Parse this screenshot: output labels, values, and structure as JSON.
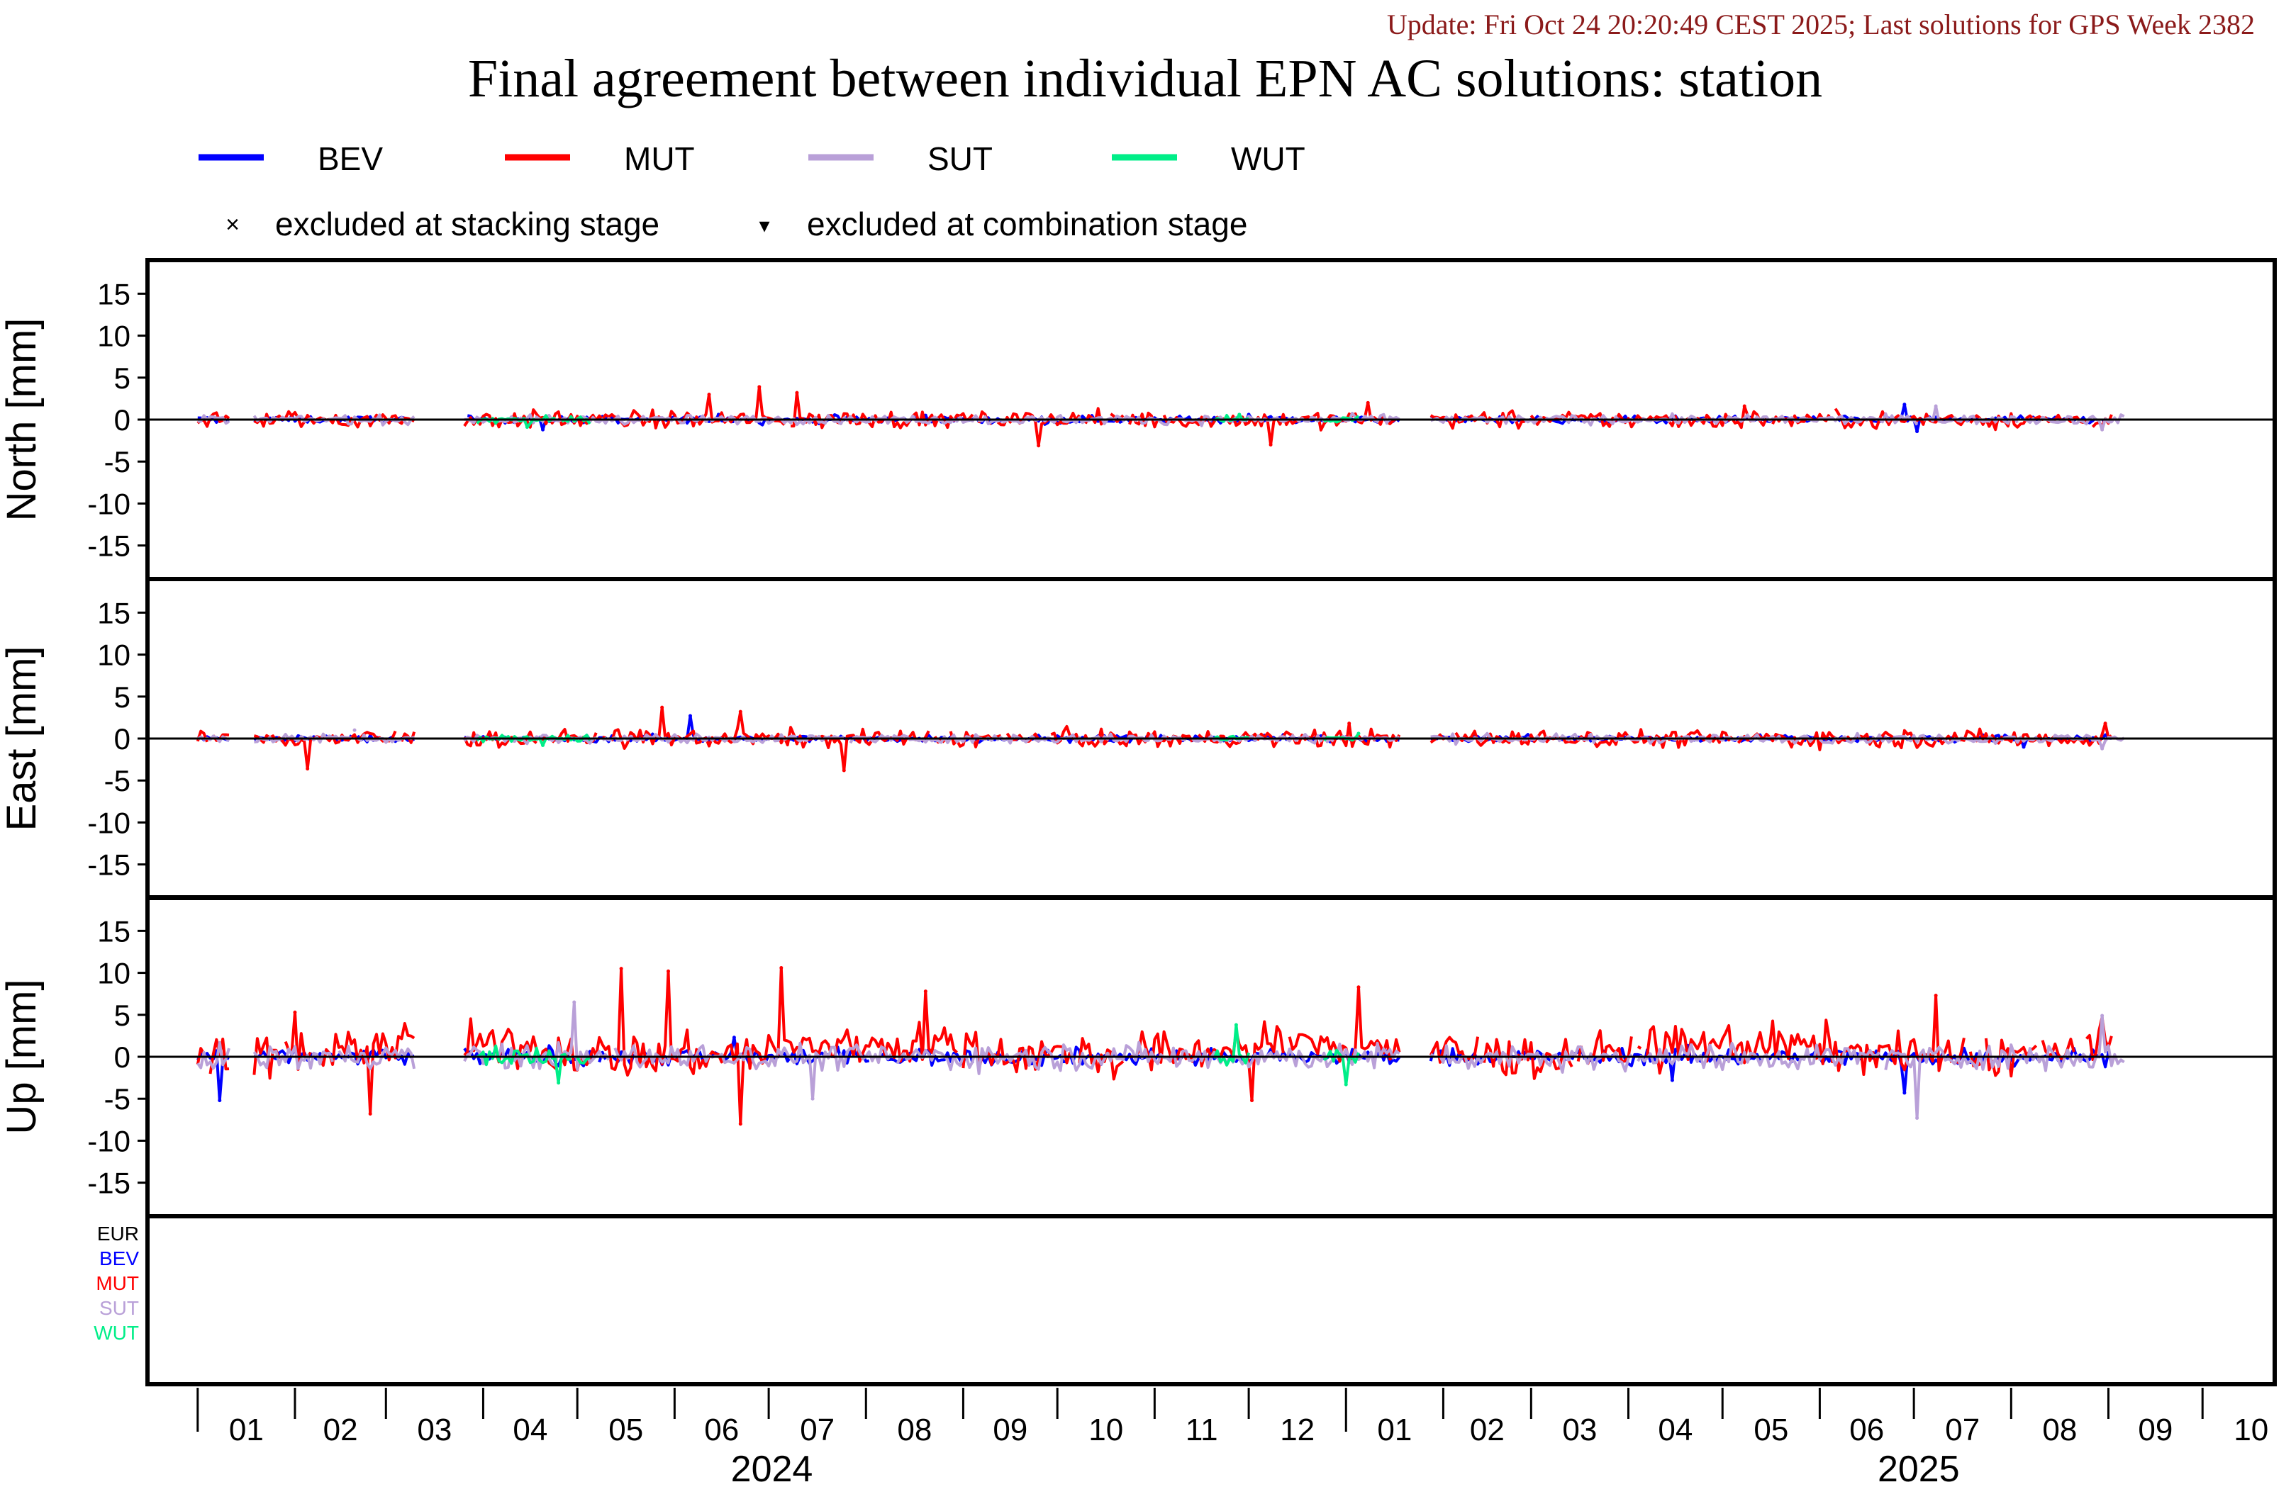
{
  "update_text": "Update: Fri Oct 24 20:20:49 CEST 2025; Last solutions for GPS Week 2382",
  "colors": {
    "update_text": "#8b1a1a",
    "BEV": "#0000ff",
    "MUT": "#ff0000",
    "SUT": "#b9a0d8",
    "WUT": "#00ee88",
    "EUR": "#000000"
  },
  "legend": {
    "series": [
      {
        "name": "BEV",
        "color": "#0000ff"
      },
      {
        "name": "MUT",
        "color": "#ff0000"
      },
      {
        "name": "SUT",
        "color": "#b9a0d8"
      },
      {
        "name": "WUT",
        "color": "#00ee88"
      }
    ],
    "stacking_symbol": "×",
    "stacking_label": "excluded at stacking stage",
    "combination_symbol": "▾",
    "combination_label": "excluded at combination stage"
  },
  "ac_list": [
    {
      "name": "EUR",
      "color": "#000000"
    },
    {
      "name": "BEV",
      "color": "#0000ff"
    },
    {
      "name": "MUT",
      "color": "#ff0000"
    },
    {
      "name": "SUT",
      "color": "#b9a0d8"
    },
    {
      "name": "WUT",
      "color": "#00ee88"
    }
  ],
  "chart_data": {
    "type": "line",
    "title": "Final agreement between individual EPN AC solutions: station",
    "x_range": [
      "2023-12-16",
      "2025-10-24"
    ],
    "x_month_ticks": [
      "01",
      "02",
      "03",
      "04",
      "05",
      "06",
      "07",
      "08",
      "09",
      "10",
      "11",
      "12",
      "01",
      "02",
      "03",
      "04",
      "05",
      "06",
      "07",
      "08",
      "09",
      "10"
    ],
    "x_year_labels": [
      "2024",
      "2025"
    ],
    "y_ticks": [
      "15",
      "10",
      "5",
      "0",
      "-5",
      "-10",
      "-15"
    ],
    "ylim": [
      -19,
      19
    ],
    "grid": false,
    "panels": [
      {
        "name": "North",
        "ylabel": "North [mm]",
        "series": [
          {
            "name": "BEV",
            "amplitude": 0.4,
            "points": [
              [
                "2024-04-20",
                -1.2
              ],
              [
                "2024-06-15",
                0.6
              ],
              [
                "2024-08-20",
                0.5
              ],
              [
                "2024-12-01",
                0.6
              ],
              [
                "2025-06-28",
                1.8
              ],
              [
                "2025-07-02",
                -1.4
              ]
            ]
          },
          {
            "name": "MUT",
            "amplitude": 1.0,
            "points": [
              [
                "2024-06-12",
                3.0
              ],
              [
                "2024-06-28",
                3.9
              ],
              [
                "2024-07-10",
                3.2
              ],
              [
                "2024-09-25",
                -3.1
              ],
              [
                "2024-12-08",
                -3.0
              ],
              [
                "2025-01-08",
                2.0
              ],
              [
                "2025-05-08",
                1.6
              ]
            ]
          },
          {
            "name": "SUT",
            "amplitude": 0.5,
            "points": [
              [
                "2025-07-08",
                1.6
              ],
              [
                "2025-08-30",
                -1.2
              ]
            ]
          },
          {
            "name": "WUT",
            "amplitude": 0.5,
            "points": [
              [
                "2024-04-15",
                -0.9
              ],
              [
                "2024-11-28",
                0.6
              ]
            ]
          }
        ]
      },
      {
        "name": "East",
        "ylabel": "East [mm]",
        "series": [
          {
            "name": "BEV",
            "amplitude": 0.4,
            "points": [
              [
                "2024-06-06",
                2.7
              ],
              [
                "2025-08-05",
                -1.0
              ]
            ]
          },
          {
            "name": "MUT",
            "amplitude": 1.0,
            "points": [
              [
                "2024-02-05",
                -3.6
              ],
              [
                "2024-05-28",
                3.7
              ],
              [
                "2024-06-22",
                3.2
              ],
              [
                "2024-07-25",
                -3.8
              ],
              [
                "2025-01-02",
                1.8
              ],
              [
                "2025-08-31",
                1.8
              ]
            ]
          },
          {
            "name": "SUT",
            "amplitude": 0.5,
            "points": [
              [
                "2024-02-20",
                1.0
              ],
              [
                "2025-08-30",
                -1.2
              ]
            ]
          },
          {
            "name": "WUT",
            "amplitude": 0.4,
            "points": [
              [
                "2024-04-20",
                -0.8
              ],
              [
                "2025-01-05",
                0.6
              ]
            ]
          }
        ]
      },
      {
        "name": "Up",
        "ylabel": "Up [mm]",
        "series": [
          {
            "name": "BEV",
            "amplitude": 1.0,
            "points": [
              [
                "2024-01-08",
                -5.2
              ],
              [
                "2024-06-20",
                2.3
              ],
              [
                "2025-04-15",
                -2.8
              ],
              [
                "2025-06-28",
                -4.3
              ]
            ]
          },
          {
            "name": "MUT",
            "amplitude": 2.5,
            "points": [
              [
                "2024-02-01",
                5.3
              ],
              [
                "2024-02-25",
                -6.8
              ],
              [
                "2024-05-15",
                10.5
              ],
              [
                "2024-05-30",
                10.2
              ],
              [
                "2024-06-22",
                -8.0
              ],
              [
                "2024-07-05",
                10.6
              ],
              [
                "2024-08-20",
                7.8
              ],
              [
                "2024-12-02",
                -5.2
              ],
              [
                "2025-01-05",
                8.3
              ],
              [
                "2025-07-08",
                7.3
              ]
            ]
          },
          {
            "name": "SUT",
            "amplitude": 1.5,
            "points": [
              [
                "2024-04-30",
                6.5
              ],
              [
                "2024-07-15",
                -5.0
              ],
              [
                "2025-07-02",
                -7.3
              ],
              [
                "2025-08-30",
                4.9
              ]
            ]
          },
          {
            "name": "WUT",
            "amplitude": 1.2,
            "points": [
              [
                "2024-04-25",
                -3.1
              ],
              [
                "2024-11-27",
                3.8
              ],
              [
                "2025-01-01",
                -3.3
              ]
            ]
          }
        ]
      }
    ],
    "data_gaps": [
      [
        "2024-01-12",
        "2024-01-18"
      ],
      [
        "2024-03-11",
        "2024-03-25"
      ],
      [
        "2025-01-19",
        "2025-01-27"
      ]
    ],
    "series_spans": {
      "BEV": [
        [
          "2024-01-01",
          "2025-09-02"
        ]
      ],
      "MUT": [
        [
          "2024-01-01",
          "2025-09-02"
        ]
      ],
      "SUT": [
        [
          "2024-01-01",
          "2025-09-06"
        ]
      ],
      "WUT": [
        [
          "2024-03-30",
          "2024-05-05"
        ],
        [
          "2024-11-20",
          "2024-12-01"
        ],
        [
          "2024-12-25",
          "2025-01-05"
        ]
      ]
    }
  }
}
